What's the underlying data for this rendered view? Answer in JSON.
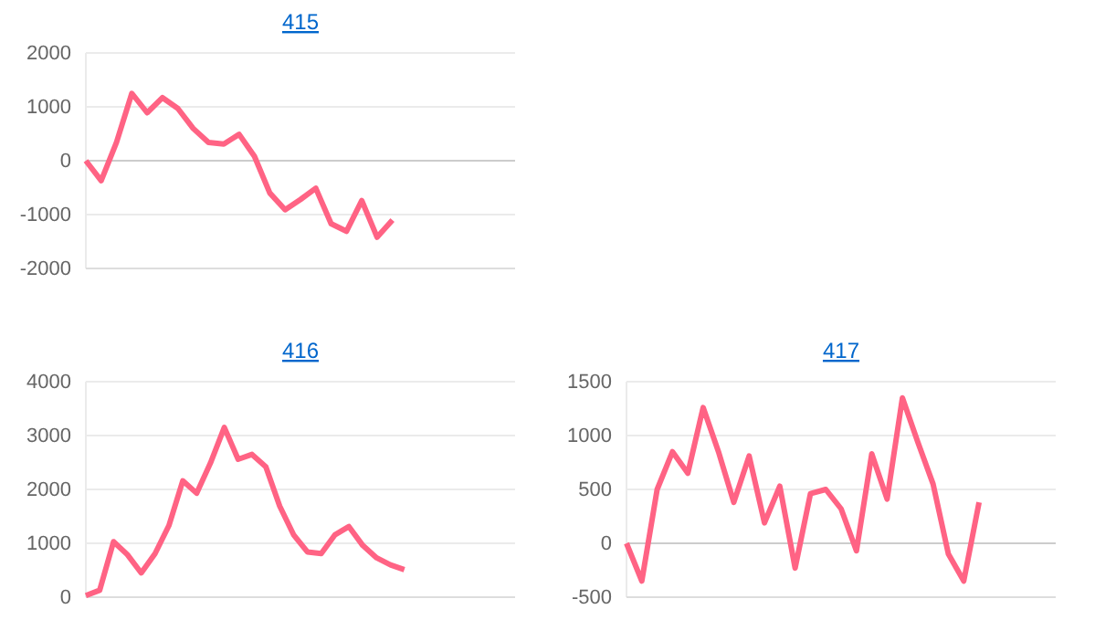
{
  "chart_data": [
    {
      "type": "line",
      "title": "415",
      "categories": [
        null,
        null,
        null,
        null,
        null,
        null,
        null,
        null,
        null,
        null,
        null,
        null,
        null,
        null,
        null,
        null,
        null,
        null,
        null,
        null,
        null,
        null,
        null,
        null,
        null,
        null,
        null,
        null,
        null
      ],
      "series": [
        {
          "color": "#ff6384",
          "values": [
            0,
            -370,
            340,
            1250,
            890,
            1170,
            970,
            600,
            340,
            310,
            490,
            80,
            -600,
            -910,
            -720,
            -510,
            -1170,
            -1310,
            -740,
            -1420,
            -1100,
            null,
            null,
            null,
            null,
            null,
            null,
            null,
            null
          ]
        }
      ],
      "ylim": [
        -2000,
        2000
      ],
      "yticks": [
        -2000,
        -1000,
        0,
        1000,
        2000
      ],
      "grid": "y",
      "marker": "none",
      "line_style": "solid"
    },
    {
      "type": "line",
      "title": "416",
      "categories": [
        null,
        null,
        null,
        null,
        null,
        null,
        null,
        null,
        null,
        null,
        null,
        null,
        null,
        null,
        null,
        null,
        null,
        null,
        null,
        null,
        null,
        null,
        null,
        null,
        null,
        null,
        null,
        null,
        null,
        null,
        null,
        null
      ],
      "series": [
        {
          "color": "#ff6384",
          "values": [
            30,
            130,
            1030,
            790,
            450,
            810,
            1330,
            2160,
            1930,
            2490,
            3150,
            2560,
            2650,
            2420,
            1690,
            1160,
            840,
            810,
            1160,
            1310,
            960,
            730,
            600,
            510,
            null,
            null,
            null,
            null,
            null,
            null,
            null,
            null
          ]
        }
      ],
      "ylim": [
        0,
        4000
      ],
      "yticks": [
        0,
        1000,
        2000,
        3000,
        4000
      ],
      "grid": "y",
      "marker": "none",
      "line_style": "solid"
    },
    {
      "type": "line",
      "title": "417",
      "categories": [
        null,
        null,
        null,
        null,
        null,
        null,
        null,
        null,
        null,
        null,
        null,
        null,
        null,
        null,
        null,
        null,
        null,
        null,
        null,
        null,
        null,
        null,
        null,
        null,
        null,
        null,
        null,
        null,
        null
      ],
      "series": [
        {
          "color": "#ff6384",
          "values": [
            0,
            -350,
            500,
            850,
            650,
            1260,
            850,
            380,
            810,
            190,
            530,
            -230,
            460,
            500,
            320,
            -70,
            830,
            410,
            1350,
            940,
            550,
            -100,
            -350,
            380,
            null,
            null,
            null,
            null,
            null
          ]
        }
      ],
      "ylim": [
        -500,
        1500
      ],
      "yticks": [
        -500,
        0,
        500,
        1000,
        1500
      ],
      "grid": "y",
      "marker": "none",
      "line_style": "solid"
    }
  ]
}
